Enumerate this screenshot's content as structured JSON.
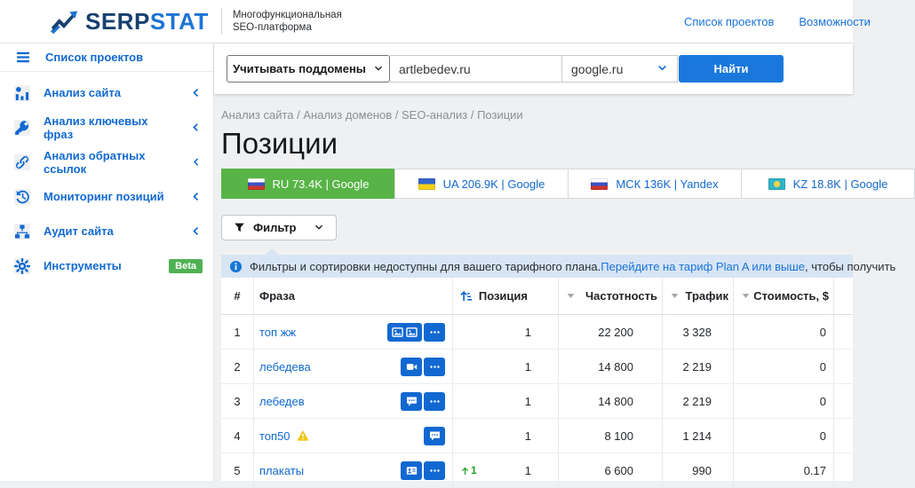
{
  "header": {
    "logo": {
      "serp": "SERP",
      "stat": "STAT"
    },
    "tagline_line1": "Многофункциональная",
    "tagline_line2": "SEO-платформа",
    "links": [
      {
        "label": "Список проектов"
      },
      {
        "label": "Возможности"
      }
    ]
  },
  "sidebar": {
    "top_item": {
      "label": "Список проектов",
      "icon": "menu"
    },
    "items": [
      {
        "label": "Анализ сайта",
        "icon": "analytics",
        "expandable": true
      },
      {
        "label": "Анализ ключевых фраз",
        "icon": "key",
        "expandable": true
      },
      {
        "label": "Анализ обратных ссылок",
        "icon": "link",
        "expandable": true
      },
      {
        "label": "Мониторинг позиций",
        "icon": "history",
        "expandable": true
      },
      {
        "label": "Аудит сайта",
        "icon": "sitemap",
        "expandable": true
      },
      {
        "label": "Инструменты",
        "icon": "gear",
        "expandable": false,
        "badge": "Beta"
      }
    ]
  },
  "search": {
    "subdomains_dropdown": "Учитывать поддомены",
    "query_value": "artlebedev.ru",
    "engine_value": "google.ru",
    "submit_label": "Найти"
  },
  "breadcrumb": "Анализ сайта / Анализ доменов / SEO-анализ / Позиции",
  "page_title": "Позиции",
  "tabs": [
    {
      "label": "RU 73.4K | Google",
      "flag": "ru",
      "active": true
    },
    {
      "label": "UA 206.9K | Google",
      "flag": "ua",
      "active": false
    },
    {
      "label": "МСК 136K | Yandex",
      "flag": "ru",
      "active": false
    },
    {
      "label": "KZ 18.8K | Google",
      "flag": "kz",
      "active": false
    }
  ],
  "filter_button": "Фильтр",
  "notice": {
    "text_before": "Фильтры и сортировки недоступны для вашего тарифного плана. ",
    "link": "Перейдите на тариф Plan A или выше",
    "text_after": ", чтобы получить "
  },
  "table": {
    "columns": [
      "#",
      "Фраза",
      "Позиция",
      "Частотность",
      "Трафик",
      "Стоимость, $"
    ],
    "rows": [
      {
        "num": "1",
        "phrase": "топ жж",
        "warning": false,
        "features": [
          "image",
          "image"
        ],
        "more": true,
        "change": "",
        "position": "1",
        "volume": "22 200",
        "traffic": "3 328",
        "cost": "0"
      },
      {
        "num": "2",
        "phrase": "лебедева",
        "warning": false,
        "features": [
          "video"
        ],
        "more": true,
        "change": "",
        "position": "1",
        "volume": "14 800",
        "traffic": "2 219",
        "cost": "0"
      },
      {
        "num": "3",
        "phrase": "лебедев",
        "warning": false,
        "features": [
          "comment"
        ],
        "more": true,
        "change": "",
        "position": "1",
        "volume": "14 800",
        "traffic": "2 219",
        "cost": "0"
      },
      {
        "num": "4",
        "phrase": "топ50",
        "warning": true,
        "features": [
          "comment"
        ],
        "more": false,
        "change": "",
        "position": "1",
        "volume": "8 100",
        "traffic": "1 214",
        "cost": "0"
      },
      {
        "num": "5",
        "phrase": "плакаты",
        "warning": false,
        "features": [
          "idcard"
        ],
        "more": true,
        "change": "1",
        "position": "1",
        "volume": "6 600",
        "traffic": "990",
        "cost": "0.17"
      }
    ]
  },
  "colors": {
    "accent_blue": "#1169d2",
    "button_blue": "#1a78dd",
    "active_tab_green": "#58b447",
    "beta_green": "#4fb153",
    "notice_bg": "#d8e5f5",
    "warning_yellow": "#f1c40f",
    "change_up_green": "#23a026"
  }
}
